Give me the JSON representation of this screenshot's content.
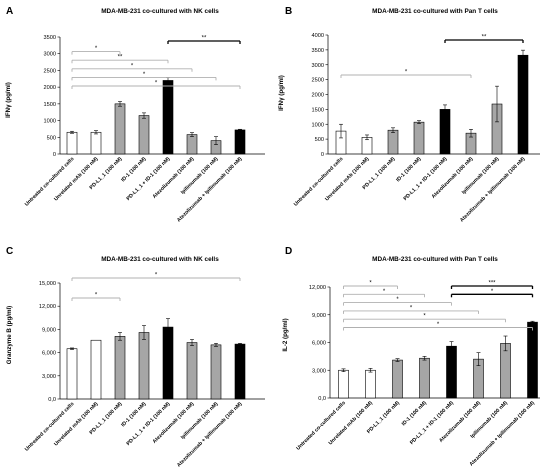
{
  "chart_data": [
    {
      "type": "bar",
      "panel": "A",
      "title": "MDA-MB-231 co-cultured with NK cells",
      "ylabel": "IFNγ (pg/ml)",
      "xlabel": "",
      "ylim": [
        0,
        3500
      ],
      "yticks": [
        0,
        500,
        1000,
        1500,
        2000,
        2500,
        3000,
        3500
      ],
      "ytick_labels": [
        "0",
        "500",
        "1000",
        "1500",
        "2000",
        "2500",
        "3000",
        "3500"
      ],
      "categories": [
        "Untreated co-cultured cells",
        "Unrelated mAb (100 nM)",
        "PD-L1_1 (100 nM)",
        "ID-1 (100 nM)",
        "PD-L1_1 + ID-1 (100 nM)",
        "Atezolizumab (100 nM)",
        "Ipilimumab (100 nM)",
        "Atezolizumab + Ipilimumab (100 nM)"
      ],
      "values": [
        650,
        650,
        1500,
        1150,
        2200,
        580,
        400,
        720
      ],
      "errors": [
        30,
        50,
        70,
        80,
        90,
        60,
        120,
        20
      ],
      "fills": [
        "white",
        "white",
        "gray",
        "gray",
        "black",
        "gray",
        "gray",
        "black"
      ],
      "significance": [
        {
          "from": 0,
          "to": 2,
          "label": "*",
          "thick": false
        },
        {
          "from": 0,
          "to": 4,
          "label": "**",
          "thick": false
        },
        {
          "from": 0,
          "to": 5,
          "label": "*",
          "thick": false
        },
        {
          "from": 0,
          "to": 6,
          "label": "*",
          "thick": false
        },
        {
          "from": 0,
          "to": 7,
          "label": "*",
          "thick": false
        },
        {
          "from": 4,
          "to": 7,
          "label": "**",
          "thick": true
        }
      ]
    },
    {
      "type": "bar",
      "panel": "B",
      "title": "MDA-MB-231 co-cultured with Pan T cells",
      "ylabel": "IFNγ (pg/ml)",
      "xlabel": "",
      "ylim": [
        0,
        4000
      ],
      "yticks": [
        0,
        500,
        1000,
        1500,
        2000,
        2500,
        3000,
        3500,
        4000
      ],
      "ytick_labels": [
        "0",
        "500",
        "1000",
        "1500",
        "2000",
        "2500",
        "3000",
        "3500",
        "4000"
      ],
      "categories": [
        "Untreated co-cultured cells",
        "Unrelated mAb (100 nM)",
        "PD-L1_1 (100 nM)",
        "ID-1 (100 nM)",
        "PD-L1_1 + ID-1 (100 nM)",
        "Atezolizumab (100 nM)",
        "Ipilimumab (100 nM)",
        "Atezolizumab + Ipilimumab (100 nM)"
      ],
      "values": [
        770,
        560,
        800,
        1070,
        1500,
        700,
        1680,
        3320
      ],
      "errors": [
        230,
        80,
        80,
        50,
        150,
        130,
        600,
        170
      ],
      "fills": [
        "white",
        "white",
        "gray",
        "gray",
        "black",
        "gray",
        "gray",
        "black"
      ],
      "significance": [
        {
          "from": 0,
          "to": 5,
          "label": "*",
          "thick": false
        },
        {
          "from": 4,
          "to": 7,
          "label": "**",
          "thick": true
        }
      ]
    },
    {
      "type": "bar",
      "panel": "C",
      "title": "MDA-MB-231 co-cultured with NK cells",
      "ylabel": "Granzyme B (pg/ml)",
      "xlabel": "",
      "ylim": [
        0,
        15000
      ],
      "yticks": [
        0,
        3000,
        6000,
        9000,
        12000,
        15000
      ],
      "ytick_labels": [
        "0,0",
        "3,000",
        "6,000",
        "9,000",
        "12,000",
        "15,000"
      ],
      "categories": [
        "Untreated co-cultured cells",
        "Unrelated mAb (100 nM)",
        "PD-L1_1 (100 nM)",
        "ID-1 (100 nM)",
        "PD-L1_1 + ID-1 (100 nM)",
        "Atezolizumab (100 nM)",
        "Ipilimumab (100 nM)",
        "Atezolizumab + Ipilimumab (100 nM)"
      ],
      "values": [
        6500,
        7600,
        8100,
        8600,
        9300,
        7300,
        7000,
        7100
      ],
      "errors": [
        100,
        0,
        500,
        900,
        1100,
        400,
        200,
        100
      ],
      "fills": [
        "white",
        "white",
        "gray",
        "gray",
        "black",
        "gray",
        "gray",
        "black"
      ],
      "significance": [
        {
          "from": 0,
          "to": 2,
          "label": "*",
          "thick": false
        },
        {
          "from": 0,
          "to": 7,
          "label": "*",
          "thick": false
        }
      ]
    },
    {
      "type": "bar",
      "panel": "D",
      "title": "MDA-MB-231 co-cultured with Pan T cells",
      "ylabel": "IL-2 (pg/ml)",
      "xlabel": "",
      "ylim": [
        0,
        12000
      ],
      "yticks": [
        0,
        3000,
        6000,
        9000,
        12000
      ],
      "ytick_labels": [
        "0,0",
        "3,000",
        "6,000",
        "9,000",
        "12,000"
      ],
      "categories": [
        "Untreated co-cultured cells",
        "Unrelated mAb (100 nM)",
        "PD-L1_1 (100 nM)",
        "ID-1 (100 nM)",
        "PD-L1_1 + ID-1 (100 nM)",
        "Atezolizumab (100 nM)",
        "Ipilimumab (100 nM)",
        "Atezolizumab + Ipilimumab (100 nM)"
      ],
      "values": [
        3000,
        3000,
        4100,
        4300,
        5600,
        4200,
        5900,
        8200
      ],
      "errors": [
        150,
        200,
        150,
        200,
        500,
        700,
        800,
        100
      ],
      "fills": [
        "white",
        "white",
        "gray",
        "gray",
        "black",
        "gray",
        "gray",
        "black"
      ],
      "significance": [
        {
          "from": 0,
          "to": 2,
          "label": "*",
          "thick": false
        },
        {
          "from": 0,
          "to": 3,
          "label": "*",
          "thick": false
        },
        {
          "from": 0,
          "to": 4,
          "label": "*",
          "thick": false
        },
        {
          "from": 0,
          "to": 5,
          "label": "*",
          "thick": false
        },
        {
          "from": 0,
          "to": 6,
          "label": "*",
          "thick": false
        },
        {
          "from": 0,
          "to": 7,
          "label": "*",
          "thick": false
        },
        {
          "from": 4,
          "to": 7,
          "label": "***",
          "thick": true
        },
        {
          "from": 4,
          "to": 7,
          "label": "*",
          "thick": true
        }
      ]
    }
  ],
  "colors": {
    "white_bar": "#ffffff",
    "gray_bar": "#a6a6a6",
    "black_bar": "#000000",
    "bracket": "#b0b0b0",
    "axis": "#000000"
  }
}
